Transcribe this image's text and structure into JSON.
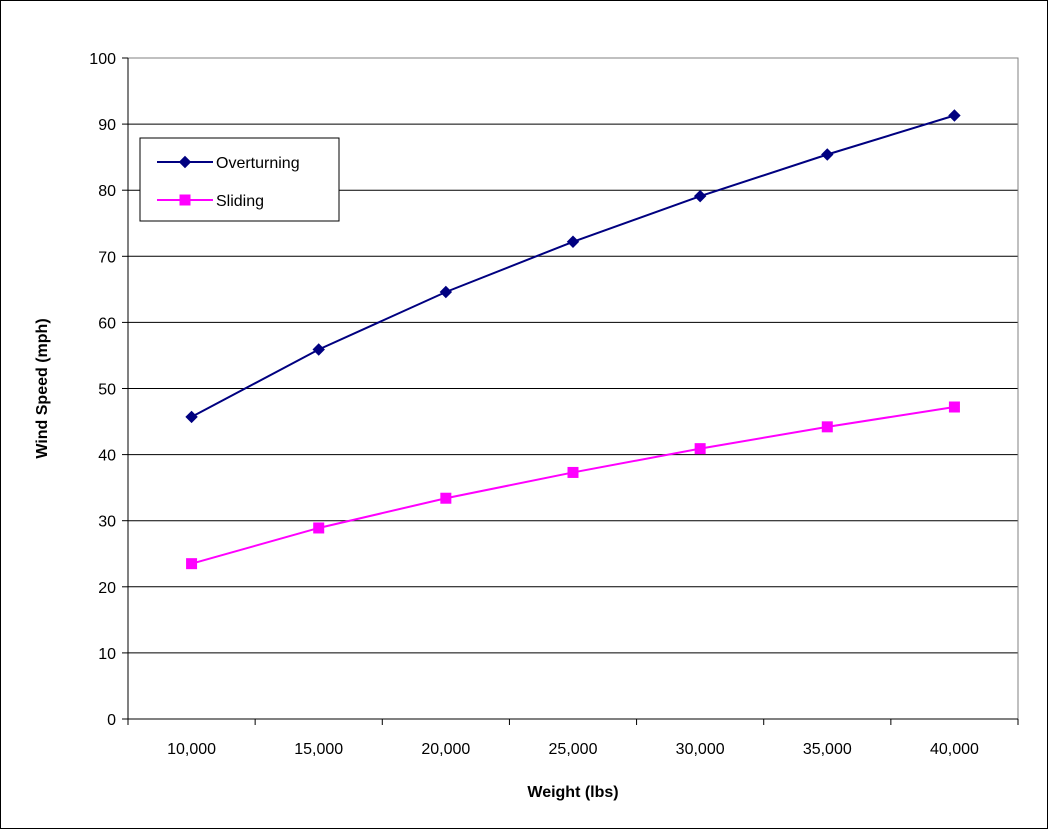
{
  "chart_data": {
    "type": "line",
    "title": "",
    "xlabel": "Weight (lbs)",
    "ylabel": "Wind Speed (mph)",
    "categories": [
      "10,000",
      "15,000",
      "20,000",
      "25,000",
      "30,000",
      "35,000",
      "40,000"
    ],
    "ylim": [
      0,
      100
    ],
    "yticks": [
      0,
      10,
      20,
      30,
      40,
      50,
      60,
      70,
      80,
      90,
      100
    ],
    "grid": true,
    "legend_position": "top-left",
    "series": [
      {
        "name": "Overturning",
        "color": "#000080",
        "marker": "diamond",
        "values": [
          45.7,
          55.9,
          64.6,
          72.2,
          79.1,
          85.4,
          91.3
        ]
      },
      {
        "name": "Sliding",
        "color": "#FF00FF",
        "marker": "square",
        "values": [
          23.5,
          28.9,
          33.4,
          37.3,
          40.9,
          44.2,
          47.2
        ]
      }
    ]
  }
}
